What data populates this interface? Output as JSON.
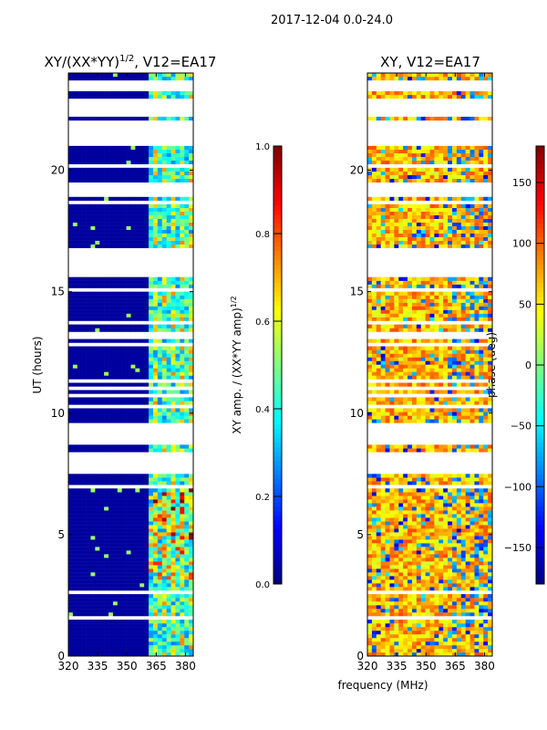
{
  "suptitle": "2017-12-04 0.0-24.0",
  "chart_data": [
    {
      "type": "heatmap",
      "title": "XY/(XX*YY)",
      "title_sup": "1/2",
      "title_suffix": ", V12=EA17",
      "xlabel": "frequency (MHz)",
      "ylabel": "UT (hours)",
      "xlim": [
        320,
        384
      ],
      "ylim": [
        0,
        24
      ],
      "xticks": [
        320,
        335,
        350,
        365,
        380
      ],
      "yticks": [
        0,
        5,
        10,
        15,
        20
      ],
      "quantity": "amplitude",
      "background_value": 0.03,
      "active_band_mhz": [
        361,
        384
      ],
      "active_band_value_range": [
        0.25,
        0.75
      ],
      "colorbar": {
        "label": "XY amp. / (XX*YY amp)",
        "label_sup": "1/2",
        "range": [
          0,
          1
        ],
        "ticks": [
          "0.0",
          "0.2",
          "0.4",
          "0.6",
          "0.8",
          "1.0"
        ],
        "tick_values": [
          0,
          0.2,
          0.4,
          0.6,
          0.8,
          1.0
        ],
        "cmap": "jet"
      }
    },
    {
      "type": "heatmap",
      "title": "XY, V12=EA17",
      "xlabel": "frequency (MHz)",
      "xlim": [
        320,
        384
      ],
      "ylim": [
        0,
        24
      ],
      "xticks": [
        320,
        335,
        350,
        365,
        380
      ],
      "yticks": [
        0,
        5,
        10,
        15,
        20
      ],
      "quantity": "phase",
      "typical_value_range_deg": [
        20,
        110
      ],
      "colorbar": {
        "label": "phase (deg)",
        "range": [
          -180,
          180
        ],
        "ticks": [
          "−150",
          "−100",
          "−50",
          "0",
          "50",
          "100",
          "150"
        ],
        "tick_values": [
          -150,
          -100,
          -50,
          0,
          50,
          100,
          150
        ],
        "cmap": "jet"
      }
    }
  ],
  "flagged_hours": [
    [
      15.6,
      16.7
    ],
    [
      7.5,
      8.4
    ],
    [
      6.85,
      7.05
    ],
    [
      2.45,
      2.6
    ],
    [
      23.25,
      23.6
    ],
    [
      22.15,
      22.9
    ],
    [
      21.0,
      21.6
    ],
    [
      13.05,
      13.3
    ],
    [
      1.45,
      1.55
    ]
  ]
}
